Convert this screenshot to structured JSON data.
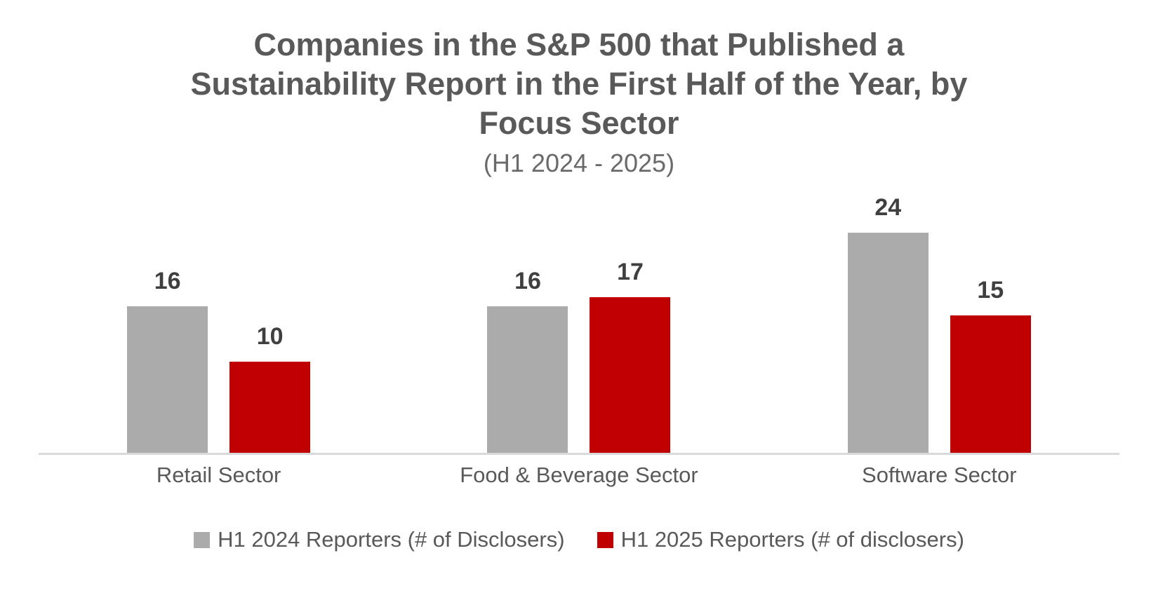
{
  "title": "Companies in the S&P 500 that Published a Sustainability Report in the First Half of the Year, by Focus Sector",
  "subtitle": "(H1 2024 - 2025)",
  "chart_data": {
    "type": "bar",
    "title": "Companies in the S&P 500 that Published a Sustainability Report in the First Half of the Year, by Focus Sector",
    "subtitle": "(H1 2024 - 2025)",
    "categories": [
      "Retail Sector",
      "Food & Beverage Sector",
      "Software Sector"
    ],
    "series": [
      {
        "name": "H1 2024 Reporters (# of Disclosers)",
        "color": "#ABABAB",
        "values": [
          16,
          16,
          24
        ]
      },
      {
        "name": "H1 2025 Reporters (# of disclosers)",
        "color": "#C00000",
        "values": [
          10,
          17,
          15
        ]
      }
    ],
    "xlabel": "",
    "ylabel": "",
    "ylim": [
      0,
      26
    ],
    "grid": false,
    "legend_position": "bottom",
    "axis_line_color": "#D9D9D9",
    "value_labels_shown": true
  }
}
